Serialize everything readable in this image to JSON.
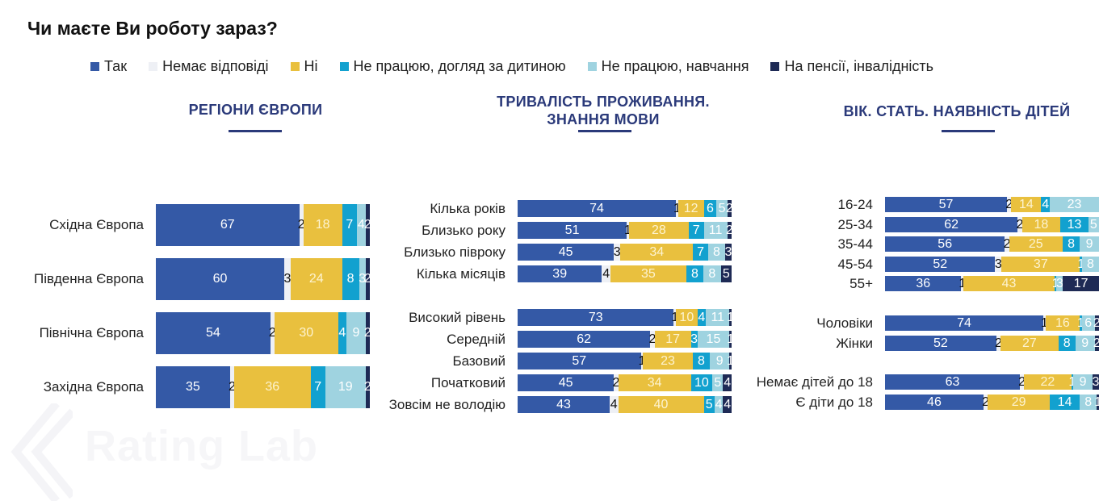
{
  "title": "Чи маєте Ви роботу зараз?",
  "colors": {
    "yes": "#3459a6",
    "no_answer": "#eef0f5",
    "no": "#e9c03e",
    "childcare": "#12a1cf",
    "study": "#9fd3e0",
    "pension": "#1e2a55"
  },
  "legend": [
    {
      "key": "yes",
      "label": "Так"
    },
    {
      "key": "no_answer",
      "label": "Немає відповіді"
    },
    {
      "key": "no",
      "label": "Ні"
    },
    {
      "key": "childcare",
      "label": "Не працюю, догляд за дитиною"
    },
    {
      "key": "study",
      "label": "Не працюю, навчання"
    },
    {
      "key": "pension",
      "label": "На пенсії, інвалідність"
    }
  ],
  "sections": {
    "regions": "РЕГІОНИ ЄВРОПИ",
    "duration_line1": "ТРИВАЛІСТЬ ПРОЖИВАННЯ.",
    "duration_line2": "ЗНАННЯ МОВИ",
    "demographics": "ВІК. СТАТЬ. НАЯВНІСТЬ ДІТЕЙ"
  },
  "watermark": "Rating Lab",
  "chart_data": [
    {
      "type": "bar",
      "stacked": true,
      "orientation": "horizontal",
      "title": "РЕГІОНИ ЄВРОПИ",
      "categories": [
        "Східна Європа",
        "Південна Європа",
        "Північна Європа",
        "Західна Європа"
      ],
      "series": [
        {
          "name": "Так",
          "values": [
            67,
            60,
            54,
            35
          ]
        },
        {
          "name": "Немає відповіді",
          "values": [
            2,
            3,
            2,
            2
          ]
        },
        {
          "name": "Ні",
          "values": [
            18,
            24,
            30,
            36
          ]
        },
        {
          "name": "Не працюю, догляд за дитиною",
          "values": [
            7,
            8,
            4,
            7
          ]
        },
        {
          "name": "Не працюю, навчання",
          "values": [
            4,
            3,
            9,
            19
          ]
        },
        {
          "name": "На пенсії, інвалідність",
          "values": [
            2,
            2,
            2,
            2
          ]
        }
      ],
      "xlim": [
        0,
        100
      ]
    },
    {
      "type": "bar",
      "stacked": true,
      "orientation": "horizontal",
      "title": "ТРИВАЛІСТЬ ПРОЖИВАННЯ. ЗНАННЯ МОВИ",
      "categories": [
        "Кілька років",
        "Близько року",
        "Близько півроку",
        "Кілька місяців",
        "Високий рівень",
        "Середній",
        "Базовий",
        "Початковий",
        "Зовсім не володію"
      ],
      "series": [
        {
          "name": "Так",
          "values": [
            74,
            51,
            45,
            39,
            73,
            62,
            57,
            45,
            43
          ]
        },
        {
          "name": "Немає відповіді",
          "values": [
            1,
            1,
            3,
            4,
            1,
            2,
            1,
            2,
            4
          ]
        },
        {
          "name": "Ні",
          "values": [
            12,
            28,
            34,
            35,
            10,
            17,
            23,
            34,
            40
          ]
        },
        {
          "name": "Не працюю, догляд за дитиною",
          "values": [
            6,
            7,
            7,
            8,
            4,
            3,
            8,
            10,
            5
          ]
        },
        {
          "name": "Не працюю, навчання",
          "values": [
            5,
            11,
            8,
            8,
            11,
            15,
            9,
            5,
            4
          ]
        },
        {
          "name": "На пенсії, інвалідність",
          "values": [
            2,
            2,
            3,
            5,
            1,
            1,
            1,
            4,
            4
          ]
        }
      ],
      "xlim": [
        0,
        100
      ]
    },
    {
      "type": "bar",
      "stacked": true,
      "orientation": "horizontal",
      "title": "ВІК. СТАТЬ. НАЯВНІСТЬ ДІТЕЙ",
      "categories": [
        "16-24",
        "25-34",
        "35-44",
        "45-54",
        "55+",
        "Чоловіки",
        "Жінки",
        "Немає дітей до 18",
        "Є діти до 18"
      ],
      "series": [
        {
          "name": "Так",
          "values": [
            57,
            62,
            56,
            52,
            36,
            74,
            52,
            63,
            46
          ]
        },
        {
          "name": "Немає відповіді",
          "values": [
            2,
            2,
            2,
            3,
            1,
            1,
            2,
            2,
            2
          ]
        },
        {
          "name": "Ні",
          "values": [
            14,
            18,
            25,
            37,
            43,
            16,
            27,
            22,
            29
          ]
        },
        {
          "name": "Не працюю, догляд за дитиною",
          "values": [
            4,
            13,
            8,
            1,
            1,
            1,
            8,
            1,
            14
          ]
        },
        {
          "name": "Не працюю, навчання",
          "values": [
            23,
            5,
            9,
            8,
            3,
            6,
            9,
            9,
            8
          ]
        },
        {
          "name": "На пенсії, інвалідність",
          "values": [
            0,
            0,
            0,
            0,
            17,
            2,
            2,
            3,
            1
          ]
        }
      ],
      "xlim": [
        0,
        100
      ]
    }
  ]
}
